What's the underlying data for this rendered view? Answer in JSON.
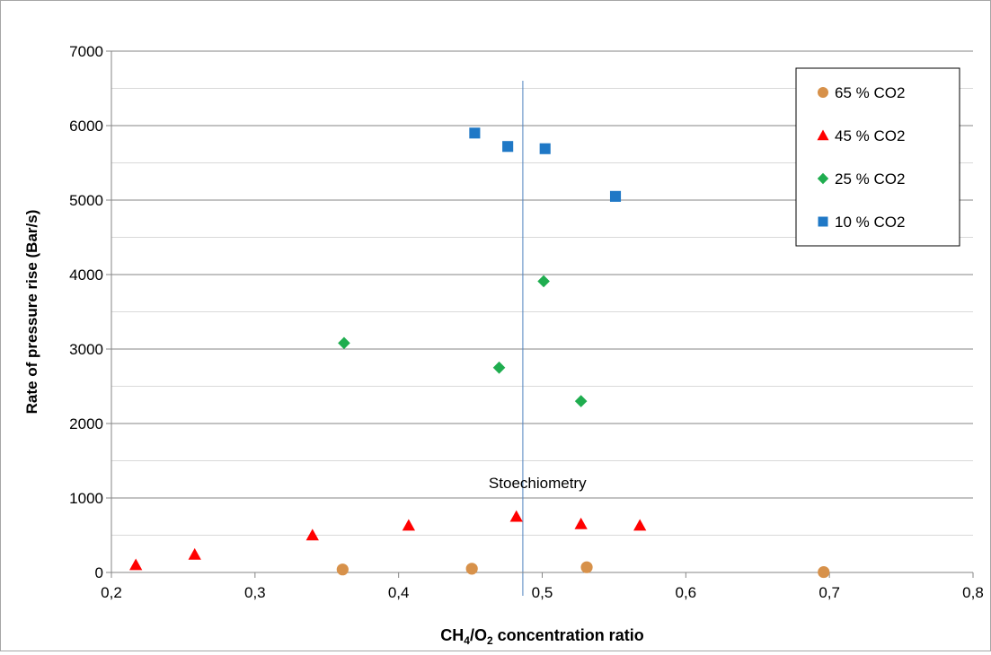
{
  "chart_data": {
    "type": "scatter",
    "xlabel_parts": [
      "CH",
      "4",
      "/O",
      "2",
      " concentration ratio"
    ],
    "ylabel": "Rate of pressure rise  (Bar/s)",
    "xlim": [
      0.2,
      0.8
    ],
    "ylim": [
      0,
      7000
    ],
    "xticks": [
      0.2,
      0.3,
      0.4,
      0.5,
      0.6,
      0.7,
      0.8
    ],
    "xtick_labels": [
      "0,2",
      "0,3",
      "0,4",
      "0,5",
      "0,6",
      "0,7",
      "0,8"
    ],
    "yticks": [
      0,
      1000,
      2000,
      3000,
      4000,
      5000,
      6000,
      7000
    ],
    "ytick_labels": [
      "0",
      "1000",
      "2000",
      "3000",
      "4000",
      "5000",
      "6000",
      "7000"
    ],
    "ygrid_minor_step": 500,
    "grid": true,
    "legend_position": "top-right",
    "annotation": {
      "text": "Stoechiometry",
      "x": 0.4865,
      "y": 1000
    },
    "reference_line_x": 0.4865,
    "series": [
      {
        "name": "65 % CO2",
        "marker": "circle",
        "color": "#d7914a",
        "points": [
          [
            0.361,
            40
          ],
          [
            0.451,
            50
          ],
          [
            0.531,
            70
          ],
          [
            0.696,
            5
          ]
        ]
      },
      {
        "name": "45 % CO2",
        "marker": "triangle",
        "color": "#ff0000",
        "points": [
          [
            0.217,
            100
          ],
          [
            0.258,
            240
          ],
          [
            0.34,
            500
          ],
          [
            0.407,
            630
          ],
          [
            0.482,
            750
          ],
          [
            0.527,
            650
          ],
          [
            0.568,
            630
          ]
        ]
      },
      {
        "name": "25 % CO2",
        "marker": "diamond",
        "color": "#1fad4f",
        "points": [
          [
            0.362,
            3080
          ],
          [
            0.47,
            2750
          ],
          [
            0.501,
            3910
          ],
          [
            0.527,
            2300
          ]
        ]
      },
      {
        "name": "10 % CO2",
        "marker": "square",
        "color": "#1f78c6",
        "points": [
          [
            0.453,
            5900
          ],
          [
            0.476,
            5720
          ],
          [
            0.502,
            5690
          ],
          [
            0.551,
            5050
          ]
        ]
      }
    ]
  }
}
